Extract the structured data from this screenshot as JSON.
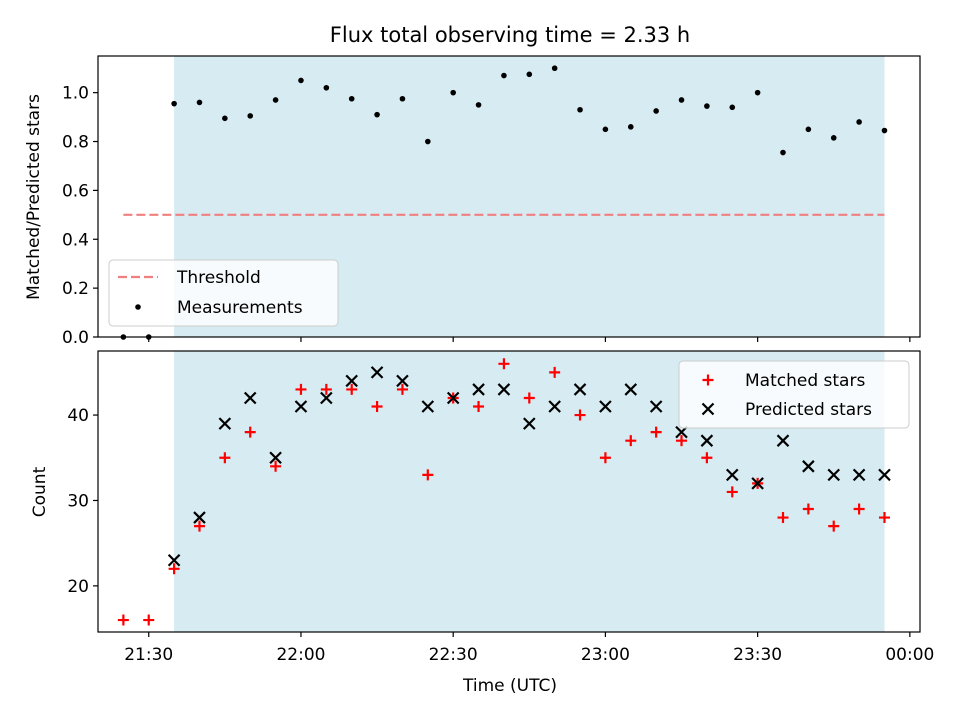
{
  "chart_data": [
    {
      "type": "scatter",
      "title": "Flux total observing time = 2.33 h",
      "ylabel": "Matched/Predicted stars",
      "xlabel": "",
      "xlim": [
        "21:20",
        "00:02"
      ],
      "ylim": [
        0,
        1.15
      ],
      "yticks": [
        0.0,
        0.2,
        0.4,
        0.6,
        0.8,
        1.0
      ],
      "ytick_labels": [
        "0.0",
        "0.2",
        "0.4",
        "0.6",
        "0.8",
        "1.0"
      ],
      "xticks": [
        "21:30",
        "22:00",
        "22:30",
        "23:00",
        "23:30",
        "00:00"
      ],
      "x_tick_labels_shown": false,
      "shaded_interval": {
        "start": "21:35",
        "end": "23:55",
        "color": "#add8e6"
      },
      "legend_position": "lower-left",
      "threshold": {
        "name": "Threshold",
        "value": 0.5,
        "x_start": "21:25",
        "x_end": "23:55",
        "color": "#f08080",
        "style": "dashed"
      },
      "series": [
        {
          "name": "Measurements",
          "color": "#000000",
          "marker": "dot",
          "points": [
            {
              "x": "21:25",
              "y": 0.0
            },
            {
              "x": "21:30",
              "y": 0.0
            },
            {
              "x": "21:35",
              "y": 0.955
            },
            {
              "x": "21:40",
              "y": 0.96
            },
            {
              "x": "21:45",
              "y": 0.895
            },
            {
              "x": "21:50",
              "y": 0.905
            },
            {
              "x": "21:55",
              "y": 0.97
            },
            {
              "x": "22:00",
              "y": 1.05
            },
            {
              "x": "22:05",
              "y": 1.02
            },
            {
              "x": "22:10",
              "y": 0.975
            },
            {
              "x": "22:15",
              "y": 0.91
            },
            {
              "x": "22:20",
              "y": 0.975
            },
            {
              "x": "22:25",
              "y": 0.8
            },
            {
              "x": "22:30",
              "y": 1.0
            },
            {
              "x": "22:35",
              "y": 0.95
            },
            {
              "x": "22:40",
              "y": 1.07
            },
            {
              "x": "22:45",
              "y": 1.075
            },
            {
              "x": "22:50",
              "y": 1.1
            },
            {
              "x": "22:55",
              "y": 0.93
            },
            {
              "x": "23:00",
              "y": 0.85
            },
            {
              "x": "23:05",
              "y": 0.86
            },
            {
              "x": "23:10",
              "y": 0.925
            },
            {
              "x": "23:15",
              "y": 0.97
            },
            {
              "x": "23:20",
              "y": 0.945
            },
            {
              "x": "23:25",
              "y": 0.94
            },
            {
              "x": "23:30",
              "y": 1.0
            },
            {
              "x": "23:35",
              "y": 0.755
            },
            {
              "x": "23:40",
              "y": 0.85
            },
            {
              "x": "23:45",
              "y": 0.815
            },
            {
              "x": "23:50",
              "y": 0.88
            },
            {
              "x": "23:55",
              "y": 0.845
            }
          ]
        }
      ]
    },
    {
      "type": "scatter",
      "title": "",
      "ylabel": "Count",
      "xlabel": "Time (UTC)",
      "xlim": [
        "21:20",
        "00:02"
      ],
      "ylim": [
        14.6,
        47.5
      ],
      "yticks": [
        20,
        30,
        40
      ],
      "ytick_labels": [
        "20",
        "30",
        "40"
      ],
      "xticks": [
        "21:30",
        "22:00",
        "22:30",
        "23:00",
        "23:30",
        "00:00"
      ],
      "xtick_labels": [
        "21:30",
        "22:00",
        "22:30",
        "23:00",
        "23:30",
        "00:00"
      ],
      "shaded_interval": {
        "start": "21:35",
        "end": "23:55",
        "color": "#add8e6"
      },
      "legend_position": "upper-right",
      "series": [
        {
          "name": "Matched stars",
          "color": "#ff0000",
          "marker": "plus",
          "points": [
            {
              "x": "21:25",
              "y": 16
            },
            {
              "x": "21:30",
              "y": 16
            },
            {
              "x": "21:35",
              "y": 22
            },
            {
              "x": "21:40",
              "y": 27
            },
            {
              "x": "21:45",
              "y": 35
            },
            {
              "x": "21:50",
              "y": 38
            },
            {
              "x": "21:55",
              "y": 34
            },
            {
              "x": "22:00",
              "y": 43
            },
            {
              "x": "22:05",
              "y": 43
            },
            {
              "x": "22:10",
              "y": 43
            },
            {
              "x": "22:15",
              "y": 41
            },
            {
              "x": "22:20",
              "y": 43
            },
            {
              "x": "22:25",
              "y": 33
            },
            {
              "x": "22:30",
              "y": 42
            },
            {
              "x": "22:35",
              "y": 41
            },
            {
              "x": "22:40",
              "y": 46
            },
            {
              "x": "22:45",
              "y": 42
            },
            {
              "x": "22:50",
              "y": 45
            },
            {
              "x": "22:55",
              "y": 40
            },
            {
              "x": "23:00",
              "y": 35
            },
            {
              "x": "23:05",
              "y": 37
            },
            {
              "x": "23:10",
              "y": 38
            },
            {
              "x": "23:15",
              "y": 37
            },
            {
              "x": "23:20",
              "y": 35
            },
            {
              "x": "23:25",
              "y": 31
            },
            {
              "x": "23:30",
              "y": 32
            },
            {
              "x": "23:35",
              "y": 28
            },
            {
              "x": "23:40",
              "y": 29
            },
            {
              "x": "23:45",
              "y": 27
            },
            {
              "x": "23:50",
              "y": 29
            },
            {
              "x": "23:55",
              "y": 28
            }
          ]
        },
        {
          "name": "Predicted stars",
          "color": "#000000",
          "marker": "x",
          "points": [
            {
              "x": "21:35",
              "y": 23
            },
            {
              "x": "21:40",
              "y": 28
            },
            {
              "x": "21:45",
              "y": 39
            },
            {
              "x": "21:50",
              "y": 42
            },
            {
              "x": "21:55",
              "y": 35
            },
            {
              "x": "22:00",
              "y": 41
            },
            {
              "x": "22:05",
              "y": 42
            },
            {
              "x": "22:10",
              "y": 44
            },
            {
              "x": "22:15",
              "y": 45
            },
            {
              "x": "22:20",
              "y": 44
            },
            {
              "x": "22:25",
              "y": 41
            },
            {
              "x": "22:30",
              "y": 42
            },
            {
              "x": "22:35",
              "y": 43
            },
            {
              "x": "22:40",
              "y": 43
            },
            {
              "x": "22:45",
              "y": 39
            },
            {
              "x": "22:50",
              "y": 41
            },
            {
              "x": "22:55",
              "y": 43
            },
            {
              "x": "23:00",
              "y": 41
            },
            {
              "x": "23:05",
              "y": 43
            },
            {
              "x": "23:10",
              "y": 41
            },
            {
              "x": "23:15",
              "y": 38
            },
            {
              "x": "23:20",
              "y": 37
            },
            {
              "x": "23:25",
              "y": 33
            },
            {
              "x": "23:30",
              "y": 32
            },
            {
              "x": "23:35",
              "y": 37
            },
            {
              "x": "23:40",
              "y": 34
            },
            {
              "x": "23:45",
              "y": 33
            },
            {
              "x": "23:50",
              "y": 33
            },
            {
              "x": "23:55",
              "y": 33
            }
          ]
        }
      ]
    }
  ]
}
